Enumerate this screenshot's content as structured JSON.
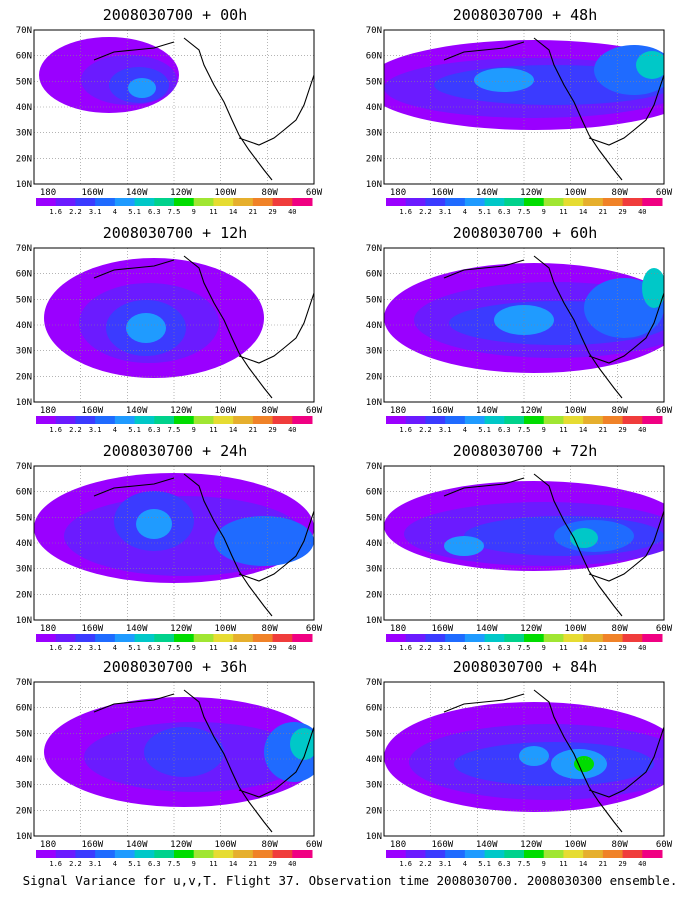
{
  "footer": "Signal Variance for u,v,T. Flight 37. Observation time 2008030700. 2008030300 ensemble.",
  "lat_labels": [
    "70N",
    "60N",
    "50N",
    "40N",
    "30N",
    "20N",
    "10N"
  ],
  "lon_labels": [
    "180",
    "160W",
    "140W",
    "120W",
    "100W",
    "80W",
    "60W"
  ],
  "colorbar": {
    "labels": [
      "1.6",
      "2.2",
      "3.1",
      "4",
      "5.1",
      "6.3",
      "7.5",
      "9",
      "11",
      "14",
      "21",
      "29",
      "40"
    ],
    "colors": [
      "#9a00ff",
      "#6b1bff",
      "#3b3bff",
      "#1f6bff",
      "#1f9bff",
      "#00c8c8",
      "#00d28c",
      "#00dc00",
      "#a0e632",
      "#e6dc32",
      "#e6af2d",
      "#f08228",
      "#f03c3c",
      "#f00082"
    ]
  },
  "panels": [
    {
      "title": "2008030700 + 00h"
    },
    {
      "title": "2008030700 + 48h"
    },
    {
      "title": "2008030700 + 12h"
    },
    {
      "title": "2008030700 + 60h"
    },
    {
      "title": "2008030700 + 24h"
    },
    {
      "title": "2008030700 + 72h"
    },
    {
      "title": "2008030700 + 36h"
    },
    {
      "title": "2008030700 + 84h"
    }
  ]
}
